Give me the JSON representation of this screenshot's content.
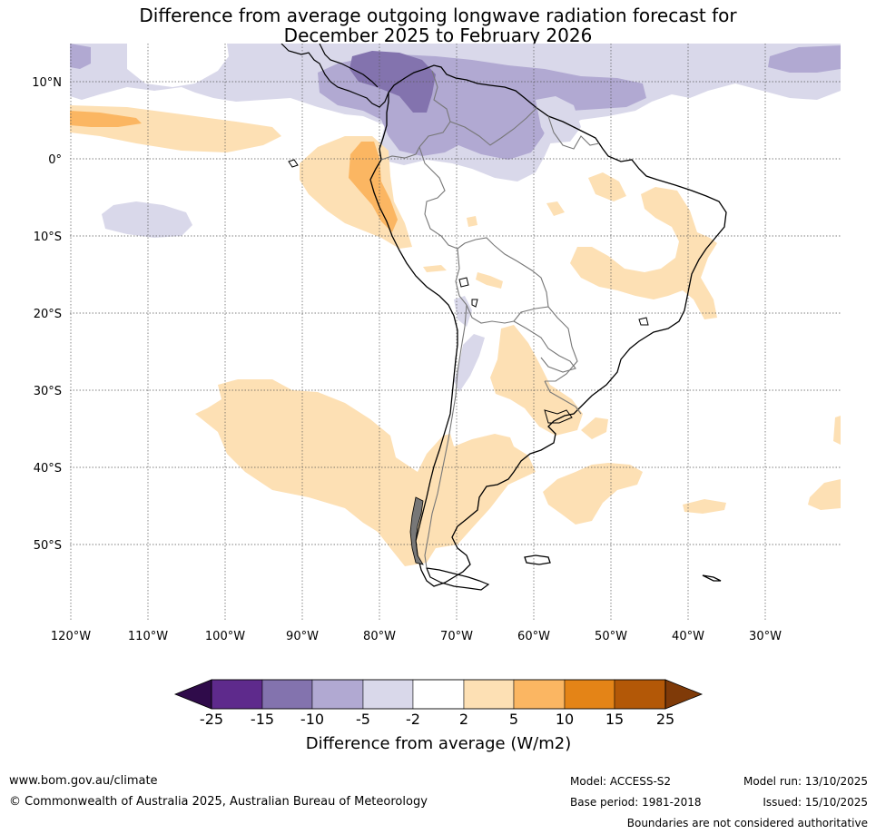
{
  "title": {
    "line1": "Difference from average outgoing longwave radiation forecast for",
    "line2": "December 2025 to February 2026"
  },
  "map": {
    "lat_labels": [
      "10°N",
      "0°",
      "10°S",
      "20°S",
      "30°S",
      "40°S",
      "50°S"
    ],
    "lon_labels": [
      "120°W",
      "110°W",
      "100°W",
      "90°W",
      "80°W",
      "70°W",
      "60°W",
      "50°W",
      "40°W",
      "30°W"
    ]
  },
  "colorbar": {
    "ticks": [
      "-25",
      "-15",
      "-10",
      "-5",
      "-2",
      "2",
      "5",
      "10",
      "15",
      "25"
    ],
    "colors": [
      "#2f0b4a",
      "#5e2a8c",
      "#8373ae",
      "#b1a9d2",
      "#d9d8ea",
      "#ffffff",
      "#fde0b4",
      "#fbb662",
      "#e48417",
      "#b35807",
      "#7f3a08"
    ],
    "title": "Difference from average (W/m2)"
  },
  "footer": {
    "url": "www.bom.gov.au/climate",
    "copyright": "© Commonwealth of Australia 2025, Australian Bureau of Meteorology",
    "model": "Model: ACCESS-S2",
    "base_period": "Base period: 1981-2018",
    "model_run": "Model run: 13/10/2025",
    "issued": "Issued: 15/10/2025",
    "disclaimer": "Boundaries are not considered authoritative"
  }
}
